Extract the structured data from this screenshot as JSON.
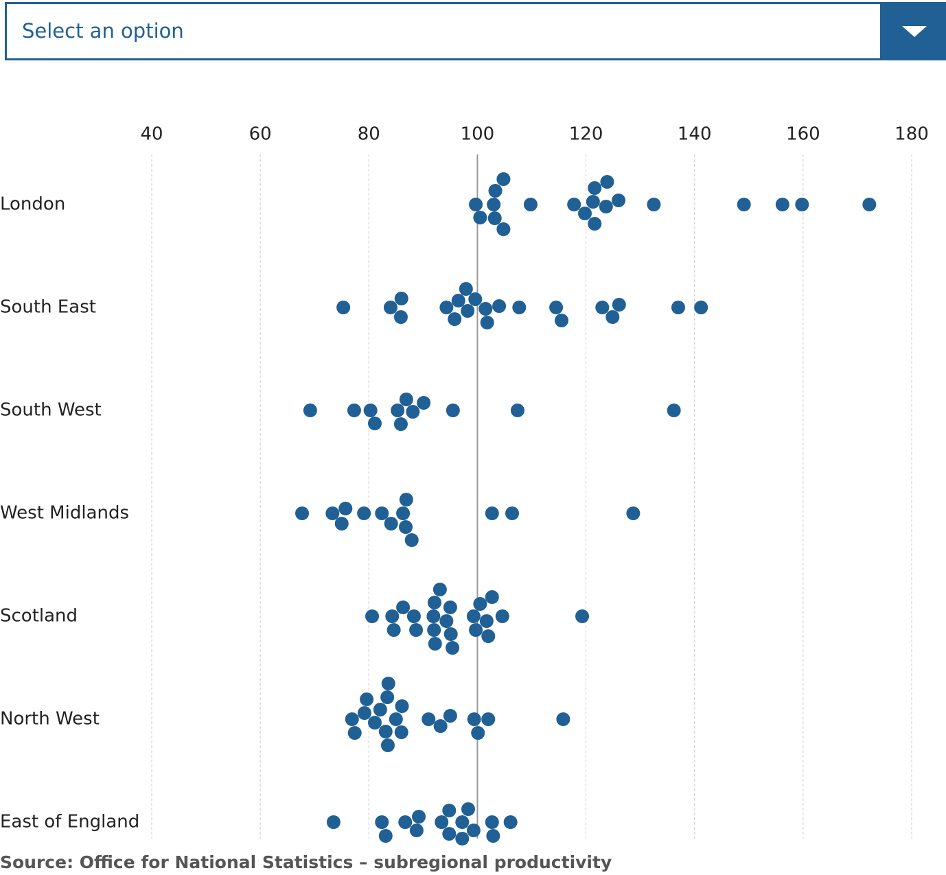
{
  "dropdown": {
    "placeholder": "Select an option"
  },
  "chart_data": {
    "type": "beeswarm",
    "source": "Source: Office for National Statistics – subregional productivity",
    "color": "#206095",
    "xlim": [
      40,
      180
    ],
    "xticks": [
      40,
      60,
      80,
      100,
      120,
      140,
      160,
      180
    ],
    "grid": true,
    "reference_value": 100,
    "series": [
      {
        "name": "London",
        "values": [
          99.7,
          100.5,
          103.0,
          103.2,
          103.3,
          104.8,
          104.8,
          109.8,
          117.8,
          119.8,
          121.3,
          121.6,
          121.6,
          123.7,
          123.9,
          126.0,
          132.5,
          149.1,
          156.2,
          159.8,
          172.2
        ]
      },
      {
        "name": "South East",
        "values": [
          75.3,
          84.0,
          85.9,
          86.0,
          94.3,
          95.8,
          96.5,
          97.9,
          98.2,
          99.6,
          101.5,
          101.8,
          104.0,
          107.7,
          114.5,
          115.5,
          123.0,
          124.9,
          126.1,
          137.0,
          141.2
        ]
      },
      {
        "name": "South West",
        "values": [
          69.2,
          77.3,
          80.3,
          81.1,
          85.3,
          85.9,
          86.9,
          88.1,
          90.1,
          95.5,
          107.4,
          136.2
        ]
      },
      {
        "name": "West Midlands",
        "values": [
          67.7,
          73.3,
          75.0,
          75.7,
          79.1,
          82.4,
          84.1,
          86.3,
          86.8,
          86.9,
          87.9,
          102.7,
          106.4,
          128.7
        ]
      },
      {
        "name": "Scotland",
        "values": [
          80.6,
          84.3,
          84.6,
          86.3,
          88.3,
          88.7,
          91.9,
          92.0,
          92.1,
          92.2,
          93.1,
          94.3,
          95.0,
          95.1,
          95.4,
          99.3,
          99.7,
          100.5,
          101.7,
          102.0,
          102.7,
          104.6,
          119.3
        ]
      },
      {
        "name": "North West",
        "values": [
          76.9,
          77.4,
          79.2,
          79.6,
          81.1,
          82.1,
          83.1,
          83.4,
          83.5,
          83.6,
          85.0,
          86.0,
          86.1,
          91.0,
          93.2,
          95.0,
          99.4,
          100.1,
          102.0,
          115.8
        ]
      },
      {
        "name": "East of England",
        "values": [
          73.5,
          82.4,
          83.1,
          86.7,
          88.8,
          89.2,
          93.4,
          94.8,
          94.8,
          97.2,
          97.2,
          98.3,
          99.3,
          102.7,
          102.9,
          106.1
        ]
      }
    ]
  }
}
